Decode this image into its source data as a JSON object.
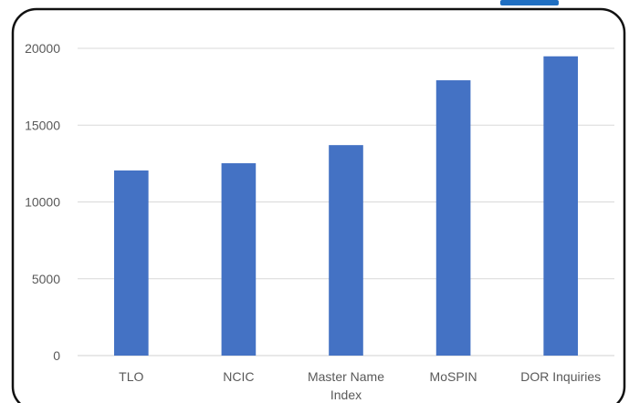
{
  "chart_data": {
    "type": "bar",
    "title": "",
    "xlabel": "",
    "ylabel": "",
    "categories": [
      "TLO",
      "NCIC",
      "Master Name Index",
      "MoSPIN",
      "DOR Inquiries"
    ],
    "category_lines": [
      [
        "TLO"
      ],
      [
        "NCIC"
      ],
      [
        "Master Name",
        "Index"
      ],
      [
        "MoSPIN"
      ],
      [
        "DOR Inquiries"
      ]
    ],
    "values": [
      12050,
      12520,
      13700,
      17920,
      19480
    ],
    "ylim": [
      0,
      20000
    ],
    "yticks": [
      0,
      5000,
      10000,
      15000,
      20000
    ],
    "grid": true,
    "legend": "none",
    "bar_color": "#4472c4",
    "accent_color": "#1f6fc2"
  }
}
